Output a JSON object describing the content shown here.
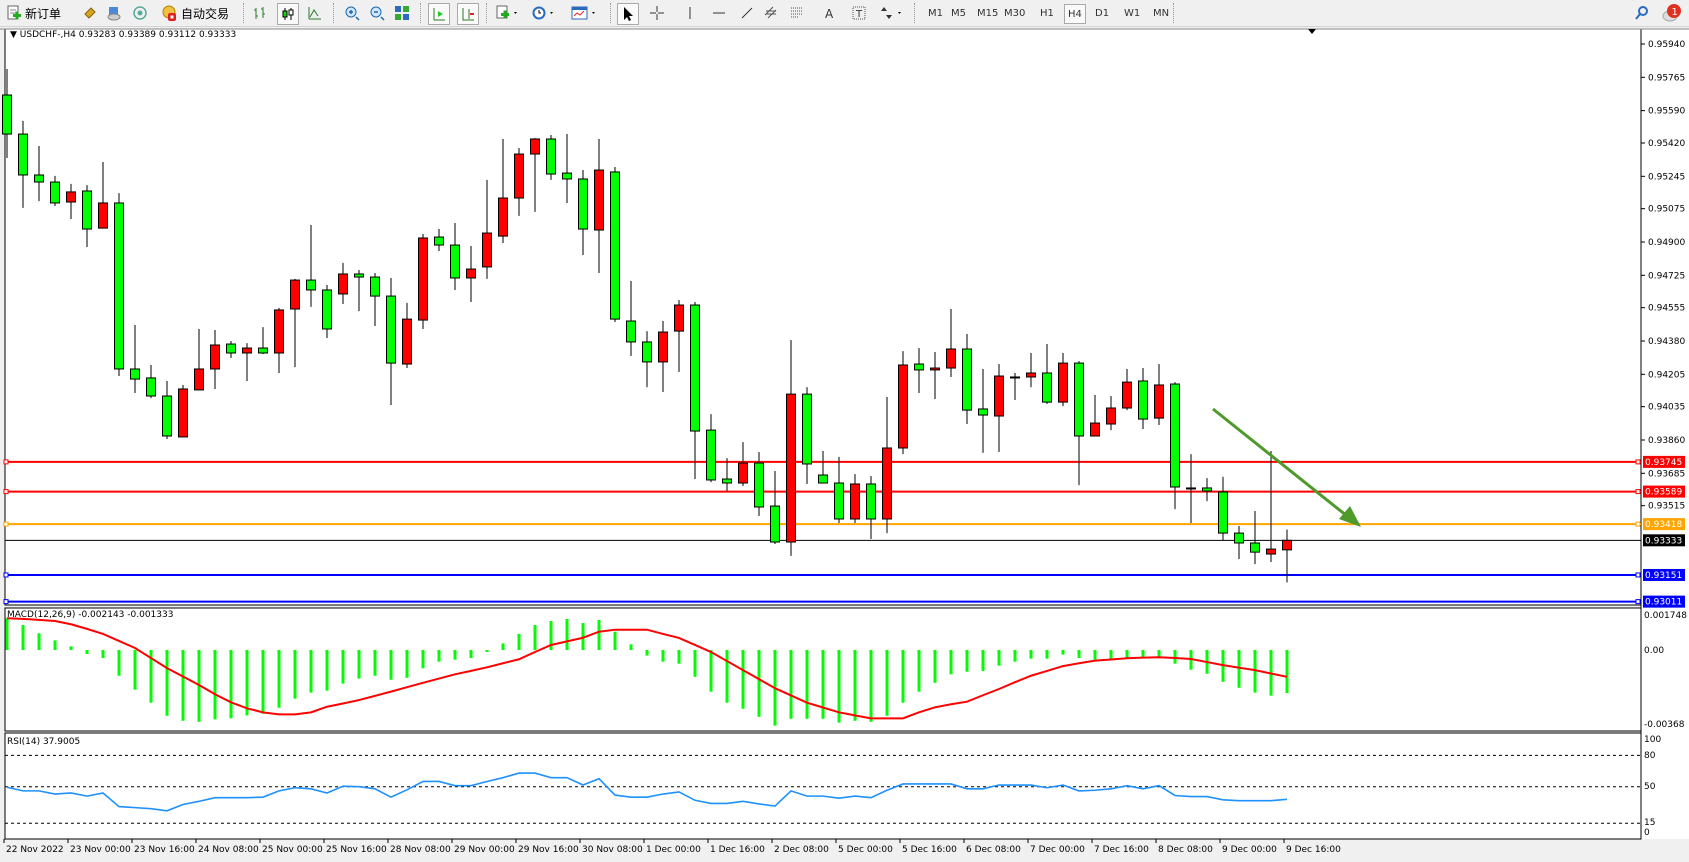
{
  "toolbar": {
    "new_order_label": "新订单",
    "auto_trading_label": "自动交易",
    "timeframes": [
      "M1",
      "M5",
      "M15",
      "M30",
      "H1",
      "H4",
      "D1",
      "W1",
      "MN"
    ],
    "active_timeframe": "H4",
    "notification_count": "1",
    "icons": [
      "new-order-icon",
      "market-watch-icon",
      "data-window-icon",
      "navigator-icon",
      "auto-trading-icon",
      "bar-chart-icon",
      "candlestick-icon",
      "line-chart-icon",
      "zoom-in-icon",
      "zoom-out-icon",
      "tile-windows-icon",
      "auto-scroll-icon",
      "chart-shift-icon",
      "new-chart-icon",
      "periods-icon",
      "templates-icon",
      "cursor-icon",
      "crosshair-icon",
      "vertical-line-icon",
      "horizontal-line-icon",
      "trendline-icon",
      "equidistant-channel-icon",
      "fibonacci-icon",
      "text-icon",
      "text-label-icon",
      "arrows-icon",
      "search-icon",
      "notification-icon"
    ]
  },
  "chart": {
    "header": "USDCHF-,H4  0.93283 0.93389 0.93112 0.93333",
    "macd_label": "MACD(12,26,9) -0.002143 -0.001333",
    "rsi_label": "RSI(14) 37.9005"
  },
  "colors": {
    "bull_candle": "#ff0000",
    "bear_candle": "#00ff00",
    "macd_histogram": "#00ff00",
    "macd_signal": "#ff0000",
    "rsi_line": "#1e90ff",
    "trend_arrow": "#4e9a2a"
  },
  "chart_data": {
    "type": "candlestick",
    "symbol": "USDCHF-",
    "timeframe": "H4",
    "price_ticks": [
      "0.95940",
      "0.95765",
      "0.95590",
      "0.95420",
      "0.95245",
      "0.95075",
      "0.94900",
      "0.94725",
      "0.94555",
      "0.94380",
      "0.94205",
      "0.94035",
      "0.93860",
      "0.93685",
      "0.93515"
    ],
    "current_price": {
      "value": "0.93333",
      "color": "#000000"
    },
    "horizontal_lines": [
      {
        "value": "0.93745",
        "color": "#ff0000"
      },
      {
        "value": "0.93589",
        "color": "#ff0000"
      },
      {
        "value": "0.93418",
        "color": "#ffa500"
      },
      {
        "value": "0.93151",
        "color": "#0000ff"
      },
      {
        "value": "0.93011",
        "color": "#0000ff"
      }
    ],
    "time_labels": [
      "22 Nov 2022",
      "23 Nov 00:00",
      "23 Nov 16:00",
      "24 Nov 08:00",
      "25 Nov 00:00",
      "25 Nov 16:00",
      "28 Nov 08:00",
      "29 Nov 00:00",
      "29 Nov 16:00",
      "30 Nov 08:00",
      "1 Dec 00:00",
      "1 Dec 16:00",
      "2 Dec 08:00",
      "5 Dec 00:00",
      "5 Dec 16:00",
      "6 Dec 08:00",
      "7 Dec 00:00",
      "7 Dec 16:00",
      "8 Dec 08:00",
      "9 Dec 00:00",
      "9 Dec 16:00"
    ],
    "ohlc": [
      [
        0.95672,
        0.95809,
        0.95341,
        0.95467
      ],
      [
        0.95467,
        0.95536,
        0.95079,
        0.95252
      ],
      [
        0.95252,
        0.95404,
        0.95115,
        0.95215
      ],
      [
        0.95215,
        0.95247,
        0.95089,
        0.95105
      ],
      [
        0.9511,
        0.95205,
        0.95021,
        0.95163
      ],
      [
        0.95168,
        0.95199,
        0.94874,
        0.94968
      ],
      [
        0.94973,
        0.9532,
        0.94973,
        0.95105
      ],
      [
        0.95105,
        0.95157,
        0.94196,
        0.94233
      ],
      [
        0.94233,
        0.94464,
        0.94107,
        0.9418
      ],
      [
        0.94186,
        0.94254,
        0.9408,
        0.94091
      ],
      [
        0.94091,
        0.9417,
        0.93865,
        0.93881
      ],
      [
        0.93876,
        0.94149,
        0.93876,
        0.94128
      ],
      [
        0.94123,
        0.94443,
        0.94123,
        0.94233
      ],
      [
        0.94233,
        0.94438,
        0.94128,
        0.94359
      ],
      [
        0.94364,
        0.9438,
        0.94291,
        0.94317
      ],
      [
        0.94317,
        0.94369,
        0.9417,
        0.94343
      ],
      [
        0.94343,
        0.94453,
        0.94312,
        0.94317
      ],
      [
        0.94317,
        0.94553,
        0.94212,
        0.94543
      ],
      [
        0.94548,
        0.94706,
        0.94243,
        0.947
      ],
      [
        0.947,
        0.94989,
        0.94559,
        0.94648
      ],
      [
        0.94648,
        0.94674,
        0.94396,
        0.94443
      ],
      [
        0.94627,
        0.9479,
        0.94574,
        0.94732
      ],
      [
        0.94732,
        0.94753,
        0.94537,
        0.94716
      ],
      [
        0.94716,
        0.94737,
        0.94459,
        0.94616
      ],
      [
        0.94616,
        0.94711,
        0.94044,
        0.94264
      ],
      [
        0.94259,
        0.9458,
        0.94238,
        0.94495
      ],
      [
        0.9449,
        0.94942,
        0.94443,
        0.94921
      ],
      [
        0.94926,
        0.94968,
        0.94853,
        0.94884
      ],
      [
        0.94884,
        0.95,
        0.94648,
        0.94711
      ],
      [
        0.94711,
        0.94879,
        0.94585,
        0.94758
      ],
      [
        0.94769,
        0.95226,
        0.94706,
        0.94947
      ],
      [
        0.94931,
        0.95441,
        0.94895,
        0.95131
      ],
      [
        0.95131,
        0.95394,
        0.95037,
        0.95362
      ],
      [
        0.95362,
        0.95446,
        0.95058,
        0.95441
      ],
      [
        0.95441,
        0.95462,
        0.95226,
        0.95257
      ],
      [
        0.95262,
        0.95467,
        0.95105,
        0.95231
      ],
      [
        0.95231,
        0.95278,
        0.94832,
        0.94968
      ],
      [
        0.94963,
        0.95441,
        0.94737,
        0.95278
      ],
      [
        0.95268,
        0.95294,
        0.9448,
        0.94495
      ],
      [
        0.94485,
        0.94695,
        0.94301,
        0.94375
      ],
      [
        0.94375,
        0.94432,
        0.94138,
        0.9427
      ],
      [
        0.9427,
        0.94485,
        0.94112,
        0.94427
      ],
      [
        0.94432,
        0.94595,
        0.94217,
        0.94569
      ],
      [
        0.94569,
        0.94585,
        0.93655,
        0.93907
      ],
      [
        0.93912,
        0.93996,
        0.93639,
        0.9365
      ],
      [
        0.93655,
        0.93765,
        0.93592,
        0.93634
      ],
      [
        0.93634,
        0.93849,
        0.93618,
        0.93739
      ],
      [
        0.93739,
        0.93797,
        0.93461,
        0.93508
      ],
      [
        0.93513,
        0.93697,
        0.93314,
        0.93324
      ],
      [
        0.93324,
        0.94385,
        0.93251,
        0.94101
      ],
      [
        0.94101,
        0.94138,
        0.93629,
        0.93734
      ],
      [
        0.93676,
        0.93802,
        0.93634,
        0.93634
      ],
      [
        0.93634,
        0.93771,
        0.93424,
        0.93445
      ],
      [
        0.93445,
        0.93681,
        0.93424,
        0.93629
      ],
      [
        0.93629,
        0.93671,
        0.9334,
        0.93445
      ],
      [
        0.93445,
        0.94086,
        0.93371,
        0.93818
      ],
      [
        0.93818,
        0.94327,
        0.93786,
        0.94254
      ],
      [
        0.94259,
        0.94343,
        0.94107,
        0.94228
      ],
      [
        0.94228,
        0.94322,
        0.94075,
        0.94238
      ],
      [
        0.94238,
        0.94548,
        0.94191,
        0.94338
      ],
      [
        0.94338,
        0.94417,
        0.93944,
        0.94017
      ],
      [
        0.94023,
        0.94233,
        0.93792,
        0.93991
      ],
      [
        0.93986,
        0.94259,
        0.93797,
        0.94196
      ],
      [
        0.94191,
        0.94212,
        0.9407,
        0.94189
      ],
      [
        0.94191,
        0.94317,
        0.94138,
        0.94212
      ],
      [
        0.94212,
        0.94364,
        0.94049,
        0.94059
      ],
      [
        0.94059,
        0.94317,
        0.94038,
        0.94264
      ],
      [
        0.94264,
        0.94275,
        0.93623,
        0.93881
      ],
      [
        0.93881,
        0.94096,
        0.93881,
        0.93949
      ],
      [
        0.93944,
        0.94091,
        0.93912,
        0.94028
      ],
      [
        0.94028,
        0.94233,
        0.94017,
        0.94164
      ],
      [
        0.9417,
        0.94238,
        0.93918,
        0.9397
      ],
      [
        0.93975,
        0.94259,
        0.93939,
        0.94149
      ],
      [
        0.94154,
        0.94164,
        0.93497,
        0.93613
      ],
      [
        0.93608,
        0.93786,
        0.93424,
        0.93606
      ],
      [
        0.93608,
        0.9366,
        0.93539,
        0.93592
      ],
      [
        0.93587,
        0.93666,
        0.93335,
        0.93371
      ],
      [
        0.93371,
        0.93408,
        0.93235,
        0.93319
      ],
      [
        0.93319,
        0.93487,
        0.93208,
        0.93271
      ],
      [
        0.93261,
        0.93802,
        0.93219,
        0.93287
      ],
      [
        0.93283,
        0.93389,
        0.93112,
        0.93333
      ]
    ],
    "macd": {
      "ticks": [
        "0.001748",
        "0.00",
        "-0.00368"
      ],
      "histogram": [
        0.00158,
        0.00124,
        0.00083,
        0.00048,
        0.00018,
        -0.0002,
        -0.0004,
        -0.00128,
        -0.00197,
        -0.00262,
        -0.00327,
        -0.00352,
        -0.00357,
        -0.00345,
        -0.0034,
        -0.00325,
        -0.00317,
        -0.00287,
        -0.00242,
        -0.00212,
        -0.00202,
        -0.00167,
        -0.00142,
        -0.00128,
        -0.00148,
        -0.00138,
        -0.00091,
        -0.00058,
        -0.00048,
        -0.0004,
        -0.0001,
        0.00033,
        0.0008,
        0.00124,
        0.00144,
        0.00154,
        0.00134,
        0.00149,
        0.00091,
        0.00028,
        -0.00028,
        -0.00058,
        -0.00068,
        -0.00133,
        -0.00207,
        -0.00262,
        -0.00292,
        -0.00332,
        -0.00376,
        -0.00342,
        -0.00342,
        -0.00342,
        -0.00361,
        -0.00352,
        -0.00357,
        -0.00327,
        -0.00262,
        -0.00207,
        -0.00163,
        -0.00121,
        -0.00108,
        -0.00104,
        -0.00078,
        -0.00058,
        -0.00043,
        -0.00043,
        -0.00023,
        -0.0004,
        -0.00048,
        -0.00048,
        -0.0004,
        -0.0004,
        -0.00033,
        -0.00068,
        -0.00098,
        -0.00118,
        -0.00158,
        -0.00188,
        -0.00212,
        -0.00227,
        -0.002143
      ],
      "signal": [
        0.00158,
        0.00155,
        0.0015,
        0.00144,
        0.00128,
        0.00105,
        0.0008,
        0.00045,
        0.0001,
        -0.0004,
        -0.0009,
        -0.00132,
        -0.00174,
        -0.0022,
        -0.0026,
        -0.0029,
        -0.0031,
        -0.0032,
        -0.0032,
        -0.0031,
        -0.00282,
        -0.00266,
        -0.00249,
        -0.00228,
        -0.00207,
        -0.00185,
        -0.00163,
        -0.00142,
        -0.00121,
        -0.00104,
        -0.00086,
        -0.00066,
        -0.00046,
        -0.0001,
        0.00025,
        0.00043,
        0.00061,
        0.00091,
        0.00101,
        0.00101,
        0.00101,
        0.0008,
        0.0006,
        0.00025,
        -0.0001,
        -0.00055,
        -0.001,
        -0.00145,
        -0.0019,
        -0.00226,
        -0.00262,
        -0.00286,
        -0.0031,
        -0.00325,
        -0.0034,
        -0.0034,
        -0.0034,
        -0.0031,
        -0.00285,
        -0.0027,
        -0.00257,
        -0.00225,
        -0.00194,
        -0.0016,
        -0.00128,
        -0.00104,
        -0.0008,
        -0.00066,
        -0.00053,
        -0.00047,
        -0.00041,
        -0.00038,
        -0.00036,
        -0.0004,
        -0.00045,
        -0.0006,
        -0.00075,
        -0.00088,
        -0.001,
        -0.00117,
        -0.001333
      ]
    },
    "rsi": {
      "levels": [
        80,
        50,
        15
      ],
      "ticks": [
        "100",
        "80",
        "50",
        "15",
        "0"
      ],
      "values": [
        49.5,
        46,
        46,
        43,
        44,
        41,
        44,
        31,
        30,
        29,
        27,
        33,
        36,
        39.5,
        39.5,
        39.5,
        40,
        46,
        49,
        48,
        44,
        50.5,
        50,
        48,
        40,
        47,
        55,
        55,
        51,
        51,
        55,
        58.6,
        63,
        63,
        58.6,
        58.6,
        51.6,
        57.6,
        42,
        40,
        40,
        43,
        45,
        37,
        34,
        34,
        36,
        33.5,
        31.5,
        46,
        41,
        41,
        39,
        41,
        39.5,
        46.6,
        52.6,
        52.6,
        52.6,
        52.6,
        48,
        48,
        51.6,
        51.6,
        51.6,
        49,
        51.6,
        46,
        46.6,
        48,
        51,
        48,
        51,
        41.6,
        40.6,
        40.6,
        37.5,
        36.6,
        36.6,
        36.6,
        37.9005
      ]
    }
  }
}
